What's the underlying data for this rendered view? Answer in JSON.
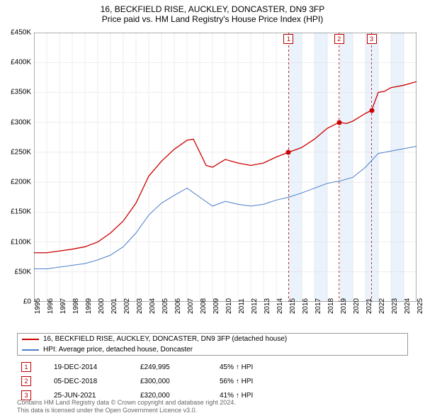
{
  "title": "16, BECKFIELD RISE, AUCKLEY, DONCASTER, DN9 3FP",
  "subtitle": "Price paid vs. HM Land Registry's House Price Index (HPI)",
  "chart": {
    "type": "line",
    "background_color": "#ffffff",
    "grid_color": "#dddddd",
    "ylim": [
      0,
      450000
    ],
    "ytick_step": 50000,
    "ytick_labels": [
      "£0",
      "£50K",
      "£100K",
      "£150K",
      "£200K",
      "£250K",
      "£300K",
      "£350K",
      "£400K",
      "£450K"
    ],
    "xlim": [
      1995,
      2025
    ],
    "xtick_years": [
      1995,
      1996,
      1997,
      1998,
      1999,
      2000,
      2001,
      2002,
      2003,
      2004,
      2005,
      2006,
      2007,
      2008,
      2009,
      2010,
      2011,
      2012,
      2013,
      2014,
      2015,
      2016,
      2017,
      2018,
      2019,
      2020,
      2021,
      2022,
      2023,
      2024,
      2025
    ],
    "shaded_bands": [
      {
        "from": 2015,
        "to": 2016,
        "color": "#eaf2fb"
      },
      {
        "from": 2017,
        "to": 2018,
        "color": "#eaf2fb"
      },
      {
        "from": 2019,
        "to": 2020,
        "color": "#eaf2fb"
      },
      {
        "from": 2021,
        "to": 2022,
        "color": "#eaf2fb"
      },
      {
        "from": 2023,
        "to": 2024,
        "color": "#eaf2fb"
      }
    ],
    "dashed_verticals": [
      {
        "x": 2014.97,
        "color": "#b00000"
      },
      {
        "x": 2018.93,
        "color": "#b00000"
      },
      {
        "x": 2021.48,
        "color": "#b00000"
      }
    ],
    "series": [
      {
        "name": "property",
        "label": "16, BECKFIELD RISE, AUCKLEY, DONCASTER, DN9 3FP (detached house)",
        "color": "#cc0000",
        "line_width": 1.3,
        "points": [
          [
            1995,
            82000
          ],
          [
            1996,
            82000
          ],
          [
            1997,
            85000
          ],
          [
            1998,
            88000
          ],
          [
            1999,
            92000
          ],
          [
            2000,
            100000
          ],
          [
            2001,
            115000
          ],
          [
            2002,
            135000
          ],
          [
            2003,
            165000
          ],
          [
            2004,
            210000
          ],
          [
            2005,
            235000
          ],
          [
            2006,
            255000
          ],
          [
            2007,
            270000
          ],
          [
            2007.5,
            272000
          ],
          [
            2008,
            250000
          ],
          [
            2008.5,
            228000
          ],
          [
            2009,
            225000
          ],
          [
            2010,
            238000
          ],
          [
            2011,
            232000
          ],
          [
            2012,
            228000
          ],
          [
            2013,
            232000
          ],
          [
            2014,
            242000
          ],
          [
            2014.97,
            249995
          ],
          [
            2015.5,
            254000
          ],
          [
            2016,
            258000
          ],
          [
            2017,
            272000
          ],
          [
            2018,
            290000
          ],
          [
            2018.93,
            300000
          ],
          [
            2019.5,
            298000
          ],
          [
            2020,
            302000
          ],
          [
            2021,
            315000
          ],
          [
            2021.48,
            320000
          ],
          [
            2022,
            350000
          ],
          [
            2022.5,
            352000
          ],
          [
            2023,
            358000
          ],
          [
            2024,
            362000
          ],
          [
            2025,
            368000
          ]
        ]
      },
      {
        "name": "hpi",
        "label": "HPI: Average price, detached house, Doncaster",
        "color": "#4a7ec8",
        "line_width": 1.0,
        "points": [
          [
            1995,
            55000
          ],
          [
            1996,
            55000
          ],
          [
            1997,
            58000
          ],
          [
            1998,
            61000
          ],
          [
            1999,
            64000
          ],
          [
            2000,
            70000
          ],
          [
            2001,
            78000
          ],
          [
            2002,
            92000
          ],
          [
            2003,
            115000
          ],
          [
            2004,
            145000
          ],
          [
            2005,
            165000
          ],
          [
            2006,
            178000
          ],
          [
            2007,
            190000
          ],
          [
            2008,
            175000
          ],
          [
            2009,
            160000
          ],
          [
            2010,
            168000
          ],
          [
            2011,
            163000
          ],
          [
            2012,
            160000
          ],
          [
            2013,
            163000
          ],
          [
            2014,
            170000
          ],
          [
            2015,
            175000
          ],
          [
            2016,
            182000
          ],
          [
            2017,
            190000
          ],
          [
            2018,
            198000
          ],
          [
            2019,
            202000
          ],
          [
            2020,
            208000
          ],
          [
            2021,
            225000
          ],
          [
            2022,
            248000
          ],
          [
            2023,
            252000
          ],
          [
            2024,
            256000
          ],
          [
            2025,
            260000
          ]
        ]
      }
    ],
    "markers": [
      {
        "id": "1",
        "x": 2014.97,
        "y_label_top": 60
      },
      {
        "id": "2",
        "x": 2018.93,
        "y_label_top": 60
      },
      {
        "id": "3",
        "x": 2021.48,
        "y_label_top": 60
      }
    ],
    "data_dots": [
      {
        "x": 2014.97,
        "y": 249995,
        "color": "#cc0000"
      },
      {
        "x": 2018.93,
        "y": 300000,
        "color": "#cc0000"
      },
      {
        "x": 2021.48,
        "y": 320000,
        "color": "#cc0000"
      }
    ],
    "label_fontsize": 10,
    "title_fontsize": 12
  },
  "legend": {
    "items": [
      {
        "color": "#cc0000",
        "label": "16, BECKFIELD RISE, AUCKLEY, DONCASTER, DN9 3FP (detached house)"
      },
      {
        "color": "#4a7ec8",
        "label": "HPI: Average price, detached house, Doncaster"
      }
    ]
  },
  "events": [
    {
      "id": "1",
      "date": "19-DEC-2014",
      "price": "£249,995",
      "pct": "45% ↑ HPI"
    },
    {
      "id": "2",
      "date": "05-DEC-2018",
      "price": "£300,000",
      "pct": "56% ↑ HPI"
    },
    {
      "id": "3",
      "date": "25-JUN-2021",
      "price": "£320,000",
      "pct": "41% ↑ HPI"
    }
  ],
  "footer": {
    "line1": "Contains HM Land Registry data © Crown copyright and database right 2024.",
    "line2": "This data is licensed under the Open Government Licence v3.0."
  }
}
